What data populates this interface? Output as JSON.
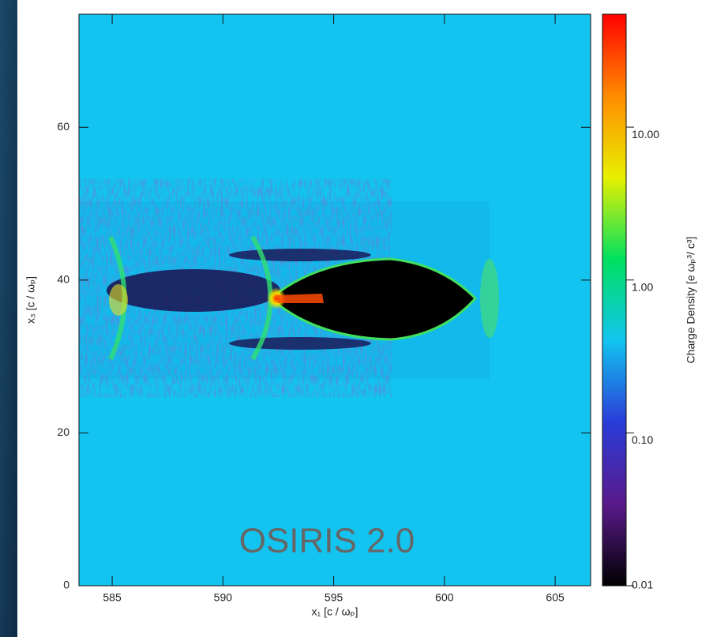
{
  "chart_data": {
    "type": "heatmap",
    "xlabel": "x₁ [c / ωₚ]",
    "ylabel": "x₃ [c / ωₚ]",
    "annotation": "OSIRIS 2.0",
    "xlim": [
      583.5,
      606.6
    ],
    "xticks": [
      585,
      590,
      595,
      600,
      605
    ],
    "ylim": [
      0,
      74.8
    ],
    "yticks": [
      0,
      20,
      40,
      60
    ],
    "colorbar": {
      "label": "Charge Density [e ωₚ³/ c³]",
      "log": true,
      "lim": [
        0.01,
        54.8
      ],
      "ticks": [
        {
          "value": 0.01,
          "label": "0.01"
        },
        {
          "value": 0.1,
          "label": "0.10"
        },
        {
          "value": 1,
          "label": "1.00"
        },
        {
          "value": 10,
          "label": "10.00"
        }
      ],
      "colormap": [
        "#000000",
        "#5a1a8c",
        "#2a3cd8",
        "#12c4ef",
        "#00e060",
        "#e8f000",
        "#ff8c00",
        "#ff0000"
      ]
    }
  }
}
